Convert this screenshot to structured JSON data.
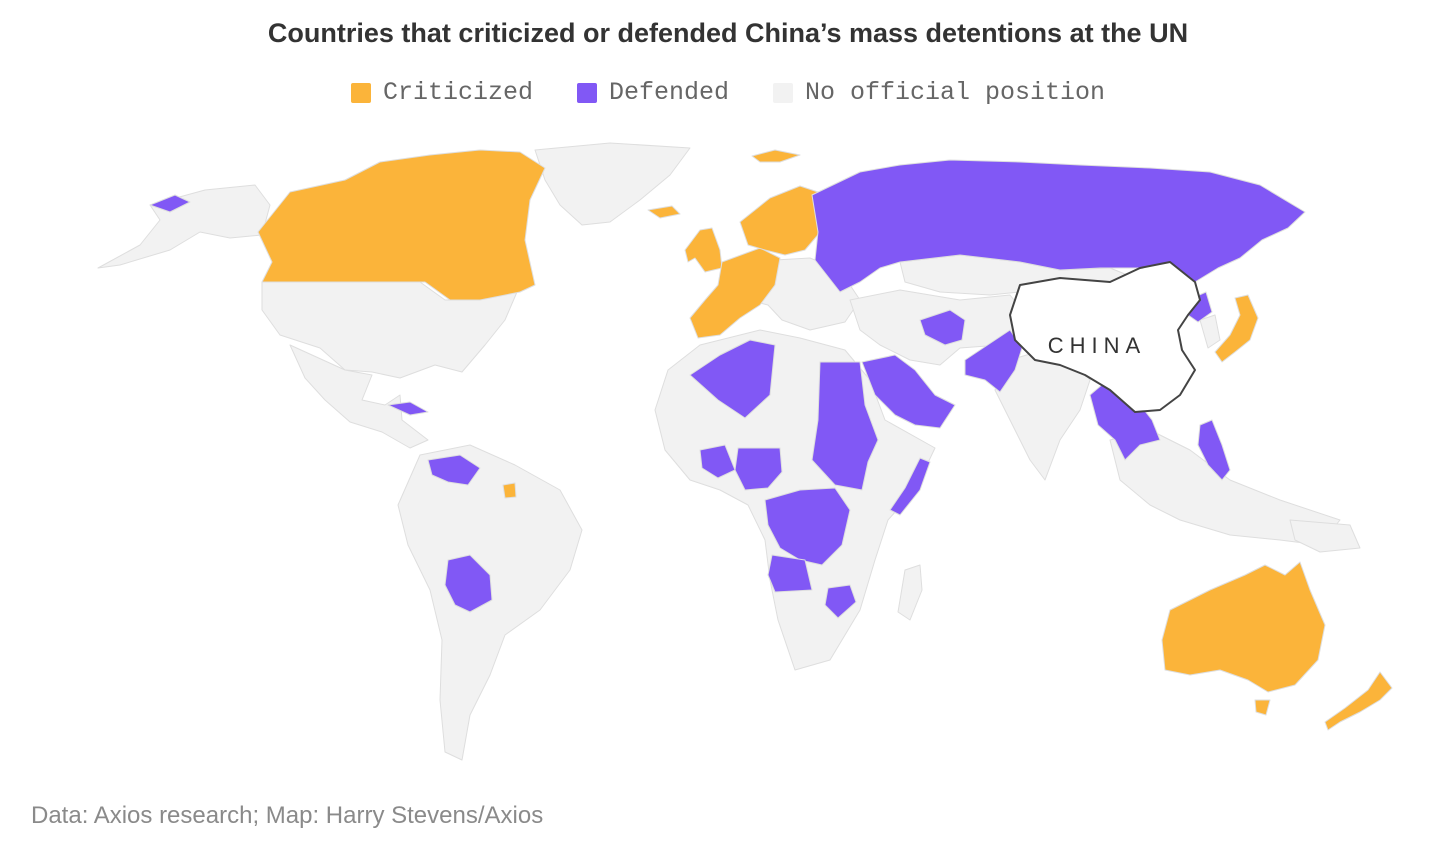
{
  "title": "Countries that criticized or defended China’s mass detentions at the UN",
  "legend": [
    {
      "label": "Criticized",
      "color": "#fbb43a"
    },
    {
      "label": "Defended",
      "color": "#8158f5"
    },
    {
      "label": "No official position",
      "color": "#f2f2f2"
    }
  ],
  "map": {
    "highlight_label": "CHINA",
    "colors": {
      "criticized": "#fbb43a",
      "defended": "#8158f5",
      "none": "#f2f2f2",
      "china_fill": "#ffffff",
      "china_stroke": "#444444"
    }
  },
  "source": "Data: Axios research; Map: Harry Stevens/Axios"
}
